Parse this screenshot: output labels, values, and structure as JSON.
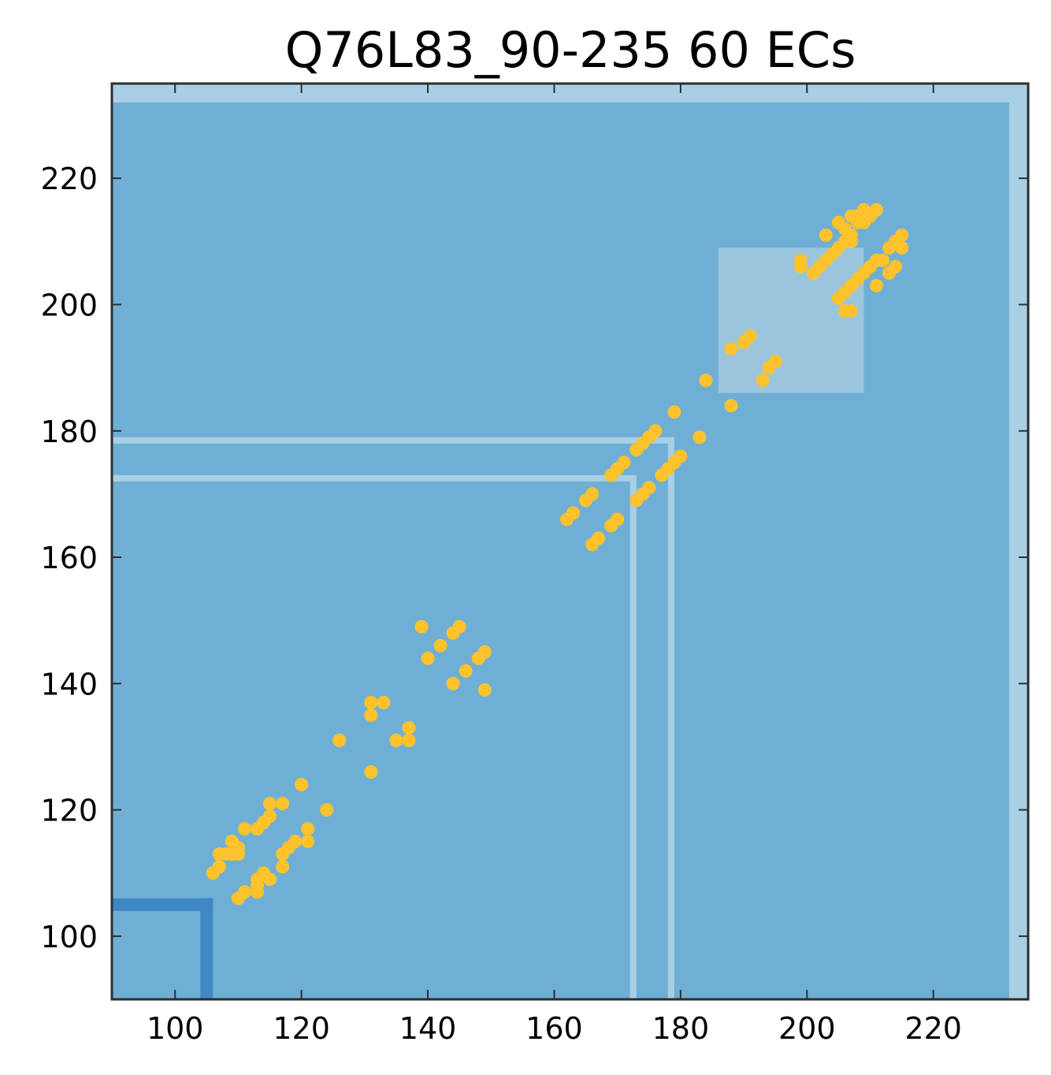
{
  "chart_data": {
    "type": "scatter",
    "title": "Q76L83_90-235 60 ECs",
    "xlabel": "",
    "ylabel": "",
    "xlim": [
      90,
      235
    ],
    "ylim": [
      90,
      235
    ],
    "xticks": [
      100,
      120,
      140,
      160,
      180,
      200,
      220
    ],
    "yticks": [
      100,
      120,
      140,
      160,
      180,
      200,
      220
    ],
    "grid": false,
    "colors": {
      "background": "#9ac5dd",
      "region_dark": "#6fafd5",
      "region_medium": "#9ac5dd",
      "region_darkest": "#3f88c3",
      "region_edge": "#a9cfe4",
      "points": "#fec32c",
      "frame": "#2e2e2e"
    },
    "regions": [
      {
        "x0": 90,
        "x1": 235,
        "y0": 90,
        "y1": 235,
        "shade": "region_medium"
      },
      {
        "x0": 90,
        "x1": 232,
        "y0": 90,
        "y1": 186,
        "shade": "region_dark"
      },
      {
        "x0": 90,
        "x1": 186,
        "y0": 90,
        "y1": 232,
        "shade": "region_dark"
      },
      {
        "x0": 90,
        "x1": 232,
        "y0": 209,
        "y1": 232,
        "shade": "region_dark"
      },
      {
        "x0": 209,
        "x1": 232,
        "y0": 90,
        "y1": 232,
        "shade": "region_dark"
      },
      {
        "x0": 90,
        "x1": 106,
        "y0": 104,
        "y1": 106,
        "shade": "region_darkest"
      },
      {
        "x0": 104,
        "x1": 106,
        "y0": 90,
        "y1": 106,
        "shade": "region_darkest"
      },
      {
        "x0": 90,
        "x1": 235,
        "y0": 232,
        "y1": 235,
        "shade": "region_edge"
      },
      {
        "x0": 232,
        "x1": 235,
        "y0": 90,
        "y1": 235,
        "shade": "region_edge"
      },
      {
        "x0": 172,
        "x1": 173,
        "y0": 90,
        "y1": 173,
        "shade": "region_edge"
      },
      {
        "x0": 90,
        "x1": 173,
        "y0": 172,
        "y1": 173,
        "shade": "region_edge"
      },
      {
        "x0": 178,
        "x1": 179,
        "y0": 90,
        "y1": 179,
        "shade": "region_edge"
      },
      {
        "x0": 90,
        "x1": 179,
        "y0": 178,
        "y1": 179,
        "shade": "region_edge"
      }
    ],
    "series": [
      {
        "points": [
          [
            106,
            110
          ],
          [
            107,
            111
          ],
          [
            107,
            113
          ],
          [
            108,
            113
          ],
          [
            109,
            113
          ],
          [
            109,
            115
          ],
          [
            110,
            113
          ],
          [
            110,
            114
          ],
          [
            110,
            106
          ],
          [
            111,
            117
          ],
          [
            111,
            107
          ],
          [
            113,
            117
          ],
          [
            113,
            109
          ],
          [
            113,
            107
          ],
          [
            113,
            108
          ],
          [
            114,
            118
          ],
          [
            114,
            110
          ],
          [
            115,
            119
          ],
          [
            115,
            121
          ],
          [
            115,
            109
          ],
          [
            117,
            121
          ],
          [
            117,
            113
          ],
          [
            117,
            111
          ],
          [
            118,
            114
          ],
          [
            119,
            115
          ],
          [
            120,
            124
          ],
          [
            121,
            117
          ],
          [
            121,
            115
          ],
          [
            124,
            120
          ],
          [
            126,
            131
          ],
          [
            131,
            137
          ],
          [
            131,
            135
          ],
          [
            131,
            126
          ],
          [
            133,
            137
          ],
          [
            135,
            131
          ],
          [
            137,
            133
          ],
          [
            137,
            131
          ],
          [
            139,
            149
          ],
          [
            140,
            144
          ],
          [
            142,
            146
          ],
          [
            144,
            148
          ],
          [
            145,
            149
          ],
          [
            144,
            140
          ],
          [
            146,
            142
          ],
          [
            148,
            144
          ],
          [
            149,
            145
          ],
          [
            149,
            139
          ],
          [
            162,
            166
          ],
          [
            163,
            167
          ],
          [
            165,
            169
          ],
          [
            166,
            170
          ],
          [
            166,
            162
          ],
          [
            167,
            163
          ],
          [
            169,
            165
          ],
          [
            170,
            166
          ],
          [
            169,
            173
          ],
          [
            170,
            174
          ],
          [
            171,
            175
          ],
          [
            173,
            177
          ],
          [
            174,
            178
          ],
          [
            175,
            179
          ],
          [
            176,
            180
          ],
          [
            173,
            169
          ],
          [
            174,
            170
          ],
          [
            175,
            171
          ],
          [
            177,
            173
          ],
          [
            178,
            174
          ],
          [
            179,
            175
          ],
          [
            180,
            176
          ],
          [
            179,
            183
          ],
          [
            183,
            179
          ],
          [
            184,
            188
          ],
          [
            188,
            184
          ],
          [
            188,
            193
          ],
          [
            190,
            194
          ],
          [
            191,
            195
          ],
          [
            193,
            188
          ],
          [
            194,
            190
          ],
          [
            195,
            191
          ],
          [
            199,
            207
          ],
          [
            199,
            206
          ],
          [
            201,
            205
          ],
          [
            202,
            206
          ],
          [
            203,
            207
          ],
          [
            203,
            211
          ],
          [
            204,
            208
          ],
          [
            205,
            209
          ],
          [
            205,
            213
          ],
          [
            206,
            210
          ],
          [
            206,
            212
          ],
          [
            207,
            210
          ],
          [
            207,
            211
          ],
          [
            207,
            214
          ],
          [
            208,
            214
          ],
          [
            208,
            213
          ],
          [
            209,
            213
          ],
          [
            209,
            215
          ],
          [
            210,
            214
          ],
          [
            211,
            215
          ],
          [
            205,
            201
          ],
          [
            206,
            202
          ],
          [
            207,
            203
          ],
          [
            208,
            204
          ],
          [
            209,
            205
          ],
          [
            210,
            206
          ],
          [
            211,
            207
          ],
          [
            212,
            207
          ],
          [
            211,
            203
          ],
          [
            213,
            209
          ],
          [
            213,
            205
          ],
          [
            214,
            210
          ],
          [
            215,
            211
          ],
          [
            215,
            209
          ],
          [
            214,
            206
          ],
          [
            206,
            199
          ],
          [
            207,
            199
          ]
        ]
      }
    ]
  }
}
